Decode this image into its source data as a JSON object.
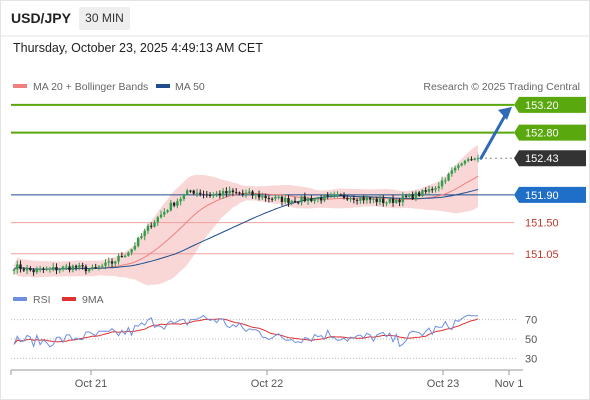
{
  "header": {
    "symbol": "USD/JPY",
    "timeframe": "30 MIN",
    "timestamp": "Thursday, October 23, 2025 4:49:13 AM CET"
  },
  "colors": {
    "up": "#2e9e4a",
    "down": "#222222",
    "bollinger_band": "#f8d0d0",
    "ma20": "#f08080",
    "ma50": "#1f4e8c",
    "resistance": "#58a80e",
    "support_red": "#f0a0a0",
    "pivot": "#1f4e8c",
    "target_arrow": "#2f6ab8",
    "rsi": "#6f8fe0",
    "rsi_ma": "#e03030"
  },
  "chart_data": [
    {
      "type": "line",
      "subtype": "candlestick",
      "legend": [
        "MA 20 + Bollinger Bands",
        "MA 50"
      ],
      "legend_position": "top-left",
      "source": "Research © 2025 Trading Central",
      "x_ticks": [
        "Oct 21",
        "Oct 22",
        "Oct 23",
        "Nov 1"
      ],
      "ylim": [
        150.7,
        153.3
      ],
      "keypoints": [
        [
          0,
          150.87
        ],
        [
          6,
          150.8
        ],
        [
          12,
          150.83
        ],
        [
          18,
          150.86
        ],
        [
          24,
          150.82
        ],
        [
          30,
          150.92
        ],
        [
          36,
          151.12
        ],
        [
          42,
          151.48
        ],
        [
          48,
          151.75
        ],
        [
          54,
          151.96
        ],
        [
          60,
          151.9
        ],
        [
          66,
          151.93
        ],
        [
          72,
          151.91
        ],
        [
          78,
          151.86
        ],
        [
          84,
          151.82
        ],
        [
          90,
          151.84
        ],
        [
          96,
          151.86
        ],
        [
          102,
          151.88
        ],
        [
          108,
          151.84
        ],
        [
          114,
          151.8
        ],
        [
          120,
          151.86
        ],
        [
          126,
          151.94
        ],
        [
          130,
          152.05
        ],
        [
          134,
          152.25
        ],
        [
          138,
          152.4
        ],
        [
          142,
          152.43
        ]
      ],
      "levels": [
        {
          "value": "153.20",
          "kind": "resistance",
          "style": "filled"
        },
        {
          "value": "152.80",
          "kind": "resistance",
          "style": "filled"
        },
        {
          "value": "152.43",
          "kind": "last-price",
          "style": "filled"
        },
        {
          "value": "151.90",
          "kind": "pivot",
          "style": "filled"
        },
        {
          "value": "151.50",
          "kind": "support",
          "style": "text"
        },
        {
          "value": "151.05",
          "kind": "support",
          "style": "text"
        }
      ],
      "projection": {
        "from": 152.43,
        "to": 153.2
      }
    },
    {
      "type": "line",
      "legend": [
        "RSI",
        "9MA"
      ],
      "legend_position": "top-left",
      "ylim": [
        20,
        80
      ],
      "y_ticks": [
        70,
        50,
        30
      ],
      "keypoints": [
        [
          0,
          50
        ],
        [
          10,
          47
        ],
        [
          20,
          52
        ],
        [
          30,
          55
        ],
        [
          36,
          58
        ],
        [
          42,
          68
        ],
        [
          50,
          64
        ],
        [
          56,
          72
        ],
        [
          62,
          70
        ],
        [
          68,
          62
        ],
        [
          74,
          58
        ],
        [
          82,
          50
        ],
        [
          90,
          52
        ],
        [
          96,
          55
        ],
        [
          104,
          50
        ],
        [
          112,
          53
        ],
        [
          118,
          48
        ],
        [
          124,
          56
        ],
        [
          130,
          60
        ],
        [
          136,
          68
        ],
        [
          140,
          74
        ],
        [
          142,
          74
        ]
      ]
    }
  ]
}
